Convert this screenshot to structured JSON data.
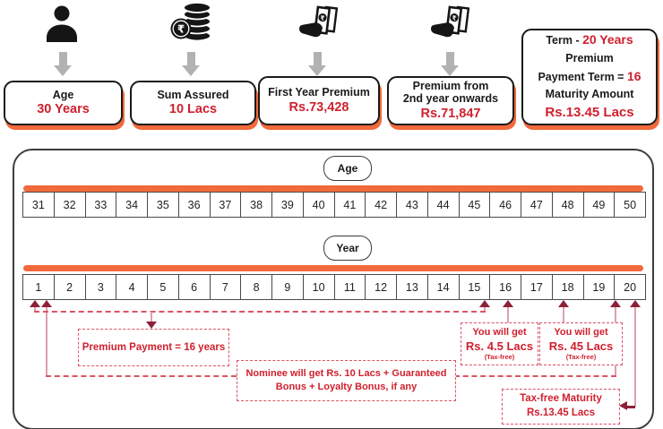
{
  "cards": [
    {
      "title": "Age",
      "value": "30 Years"
    },
    {
      "title": "Sum Assured",
      "value": "10 Lacs"
    },
    {
      "title": "First Year Premium",
      "value": "Rs.73,428"
    },
    {
      "title_line1": "Premium from",
      "title_line2": "2nd year onwards",
      "value": "Rs.71,847"
    }
  ],
  "summary": {
    "term_label": "Term  - ",
    "term_value": "20 Years",
    "premium_label": "Premium",
    "ppt_label": "Payment Term = ",
    "ppt_value": "16",
    "maturity_label": "Maturity Amount",
    "maturity_value": "Rs.13.45 Lacs"
  },
  "timeline": {
    "age_label": "Age",
    "year_label": "Year",
    "ages": [
      "31",
      "32",
      "33",
      "34",
      "35",
      "36",
      "37",
      "38",
      "39",
      "40",
      "41",
      "42",
      "43",
      "44",
      "45",
      "46",
      "47",
      "48",
      "49",
      "50"
    ],
    "years": [
      "1",
      "2",
      "3",
      "4",
      "5",
      "6",
      "7",
      "8",
      "9",
      "10",
      "11",
      "12",
      "13",
      "14",
      "15",
      "16",
      "17",
      "18",
      "19",
      "20"
    ]
  },
  "annotations": {
    "premium_payment": "Premium Payment = 16 years",
    "benefit16": {
      "l1": "You will get",
      "l2": "Rs. 4.5 Lacs",
      "l3": "(Tax-free)"
    },
    "benefit18": {
      "l1": "You will get",
      "l2": "Rs. 45 Lacs",
      "l3": "(Tax-free)"
    },
    "nominee": {
      "l1": "Nominee will get Rs. 10 Lacs + Guaranteed",
      "l2": "Bonus + Loyalty Bonus, if any"
    },
    "maturity": {
      "l1": "Tax-free Maturity",
      "l2": "Rs.13.45 Lacs"
    }
  },
  "colors": {
    "orange": "#F2693B",
    "red": "#D0202E",
    "maroon": "#8E2038",
    "pink": "#DFA0AC",
    "dashred": "#DC5264",
    "grayarrow": "#B2B2B2",
    "ink": "#1A1A1A",
    "borderdark": "#3C3C3C"
  }
}
